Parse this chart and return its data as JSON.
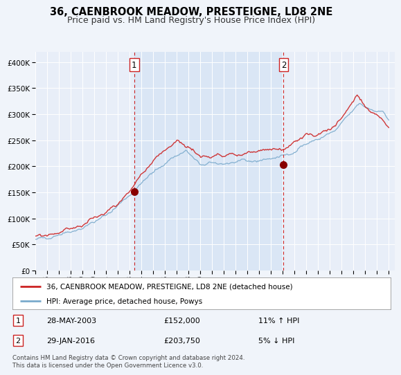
{
  "title": "36, CAENBROOK MEADOW, PRESTEIGNE, LD8 2NE",
  "subtitle": "Price paid vs. HM Land Registry's House Price Index (HPI)",
  "ylim": [
    0,
    420000
  ],
  "yticks": [
    0,
    50000,
    100000,
    150000,
    200000,
    250000,
    300000,
    350000,
    400000
  ],
  "ytick_labels": [
    "£0",
    "£50K",
    "£100K",
    "£150K",
    "£200K",
    "£250K",
    "£300K",
    "£350K",
    "£400K"
  ],
  "background_color": "#f0f4fa",
  "plot_bg_color": "#e8eef8",
  "plot_bg_shaded": "#dae6f5",
  "grid_color": "#ffffff",
  "red_line_color": "#cc2222",
  "blue_line_color": "#7aaacc",
  "sale1_x": 2003.41,
  "sale1_y": 152000,
  "sale1_label": "1",
  "sale1_date": "28-MAY-2003",
  "sale1_price": "£152,000",
  "sale1_hpi": "11% ↑ HPI",
  "sale2_x": 2016.08,
  "sale2_y": 203750,
  "sale2_label": "2",
  "sale2_date": "29-JAN-2016",
  "sale2_price": "£203,750",
  "sale2_hpi": "5% ↓ HPI",
  "vline_color": "#cc2222",
  "marker_color": "#880000",
  "legend_red_label": "36, CAENBROOK MEADOW, PRESTEIGNE, LD8 2NE (detached house)",
  "legend_blue_label": "HPI: Average price, detached house, Powys",
  "footer": "Contains HM Land Registry data © Crown copyright and database right 2024.\nThis data is licensed under the Open Government Licence v3.0.",
  "title_fontsize": 10.5,
  "subtitle_fontsize": 9,
  "x_start": 1995,
  "x_end": 2025.5,
  "xtick_years": [
    1995,
    1996,
    1997,
    1998,
    1999,
    2000,
    2001,
    2002,
    2003,
    2004,
    2005,
    2006,
    2007,
    2008,
    2009,
    2010,
    2011,
    2012,
    2013,
    2014,
    2015,
    2016,
    2017,
    2018,
    2019,
    2020,
    2021,
    2022,
    2023,
    2024,
    2025
  ],
  "xtick_labels_2digit": [
    "95",
    "96",
    "97",
    "98",
    "99",
    "00",
    "01",
    "02",
    "03",
    "04",
    "05",
    "06",
    "07",
    "08",
    "09",
    "10",
    "11",
    "12",
    "13",
    "14",
    "15",
    "16",
    "17",
    "18",
    "19",
    "20",
    "21",
    "22",
    "23",
    "24",
    "25"
  ],
  "shaded_start": 2003.41,
  "shaded_end": 2016.08
}
